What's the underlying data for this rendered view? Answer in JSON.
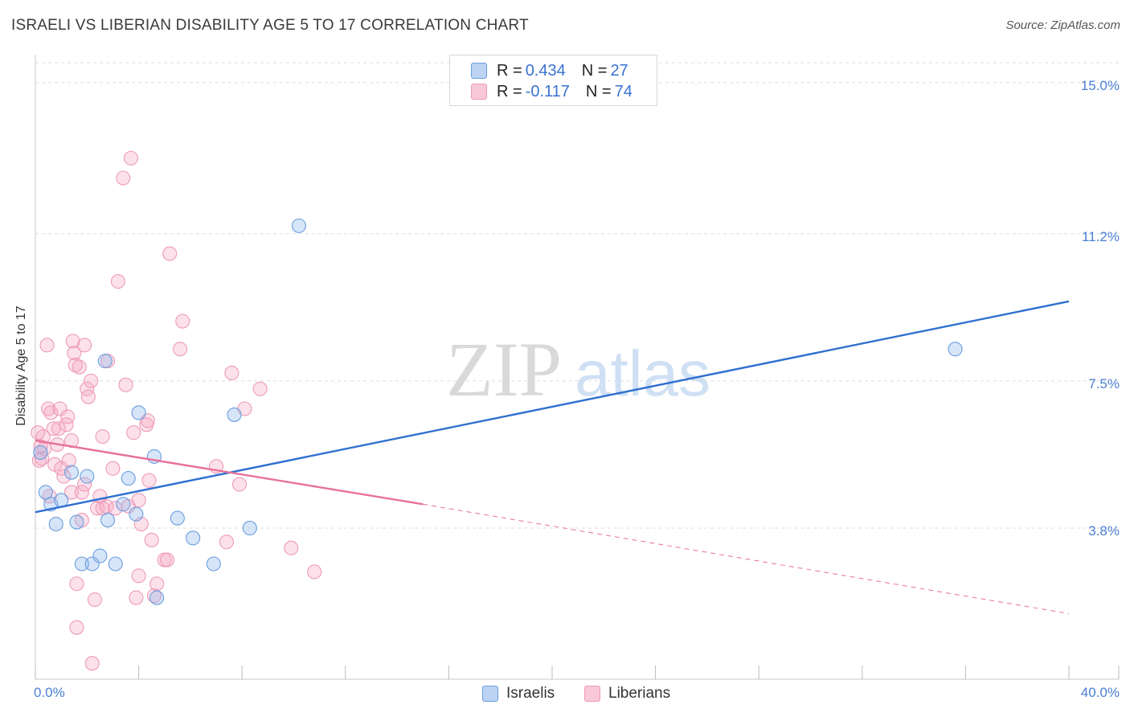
{
  "title": "ISRAELI VS LIBERIAN DISABILITY AGE 5 TO 17 CORRELATION CHART",
  "source": "Source: ZipAtlas.com",
  "watermark": {
    "zip": "ZIP",
    "atlas": "atlas"
  },
  "legend": {
    "israelis": {
      "r_label": "R = ",
      "r_value": "0.434",
      "n_label": "N = ",
      "n_value": "27"
    },
    "liberians": {
      "r_label": "R = ",
      "r_value": "-0.117",
      "n_label": "N = ",
      "n_value": "74"
    }
  },
  "bottom_legend": {
    "israelis": "Israelis",
    "liberians": "Liberians"
  },
  "colors": {
    "israeli_fill": "rgba(140,180,235,0.35)",
    "israeli_stroke": "#6a9ee0",
    "israeli_line": "#2f6fd0",
    "liberian_fill": "rgba(245,170,195,0.35)",
    "liberian_stroke": "#ee9ab8",
    "liberian_line": "#e8709a",
    "tick_text": "#4a7fd4",
    "grid": "#dddddd"
  },
  "chart_data": {
    "type": "scatter",
    "title": "ISRAELI VS LIBERIAN DISABILITY AGE 5 TO 17 CORRELATION CHART",
    "xlabel": "",
    "ylabel": "Disability Age 5 to 17",
    "xlim": [
      0,
      40
    ],
    "ylim": [
      0,
      15.5
    ],
    "x_tick_labels": [
      {
        "value": 0,
        "label": "0.0%"
      },
      {
        "value": 40,
        "label": "40.0%"
      }
    ],
    "x_ticks": [
      0,
      4,
      8,
      12,
      16,
      20,
      24,
      28,
      32,
      36,
      40
    ],
    "y_ticks": [
      {
        "value": 3.8,
        "label": "3.8%"
      },
      {
        "value": 7.5,
        "label": "7.5%"
      },
      {
        "value": 11.2,
        "label": "11.2%"
      },
      {
        "value": 15.0,
        "label": "15.0%"
      }
    ],
    "grid": true,
    "series": [
      {
        "name": "Israelis",
        "points": [
          [
            0.2,
            5.7
          ],
          [
            0.4,
            4.7
          ],
          [
            0.6,
            4.4
          ],
          [
            0.8,
            3.9
          ],
          [
            1.0,
            4.5
          ],
          [
            1.4,
            5.2
          ],
          [
            1.6,
            3.95
          ],
          [
            2.0,
            5.1
          ],
          [
            1.8,
            2.9
          ],
          [
            2.2,
            2.9
          ],
          [
            2.5,
            3.1
          ],
          [
            2.8,
            4.0
          ],
          [
            2.7,
            8.0
          ],
          [
            3.1,
            2.9
          ],
          [
            3.4,
            4.4
          ],
          [
            3.6,
            5.05
          ],
          [
            3.9,
            4.15
          ],
          [
            4.0,
            6.7
          ],
          [
            4.6,
            5.6
          ],
          [
            4.7,
            2.05
          ],
          [
            5.5,
            4.05
          ],
          [
            6.1,
            3.55
          ],
          [
            6.9,
            2.9
          ],
          [
            7.7,
            6.65
          ],
          [
            8.3,
            3.8
          ],
          [
            10.2,
            11.4
          ],
          [
            35.6,
            8.3
          ]
        ],
        "trend": {
          "x": [
            0,
            40
          ],
          "y": [
            4.2,
            9.5
          ]
        }
      },
      {
        "name": "Liberians",
        "points": [
          [
            0.15,
            5.5
          ],
          [
            0.3,
            6.1
          ],
          [
            0.35,
            5.8
          ],
          [
            0.45,
            8.4
          ],
          [
            0.5,
            6.8
          ],
          [
            0.6,
            6.7
          ],
          [
            0.7,
            6.3
          ],
          [
            0.75,
            5.4
          ],
          [
            0.85,
            5.9
          ],
          [
            0.9,
            6.3
          ],
          [
            0.95,
            6.8
          ],
          [
            1.0,
            5.3
          ],
          [
            1.1,
            5.1
          ],
          [
            1.2,
            6.4
          ],
          [
            1.25,
            6.6
          ],
          [
            1.3,
            5.5
          ],
          [
            1.4,
            4.7
          ],
          [
            1.4,
            6.0
          ],
          [
            1.45,
            8.5
          ],
          [
            1.5,
            8.2
          ],
          [
            1.55,
            7.9
          ],
          [
            1.6,
            2.4
          ],
          [
            1.6,
            1.3
          ],
          [
            1.7,
            7.85
          ],
          [
            1.8,
            4.7
          ],
          [
            1.8,
            4.0
          ],
          [
            1.9,
            8.4
          ],
          [
            1.9,
            4.9
          ],
          [
            2.0,
            7.3
          ],
          [
            2.05,
            7.1
          ],
          [
            2.15,
            7.5
          ],
          [
            2.2,
            0.4
          ],
          [
            2.3,
            2.0
          ],
          [
            2.4,
            4.3
          ],
          [
            2.5,
            4.6
          ],
          [
            2.6,
            4.3
          ],
          [
            2.6,
            6.1
          ],
          [
            2.75,
            4.35
          ],
          [
            2.8,
            8.0
          ],
          [
            3.0,
            5.3
          ],
          [
            3.1,
            4.3
          ],
          [
            3.2,
            10.0
          ],
          [
            3.4,
            12.6
          ],
          [
            3.5,
            7.4
          ],
          [
            3.6,
            4.35
          ],
          [
            3.7,
            13.1
          ],
          [
            3.8,
            6.2
          ],
          [
            3.9,
            2.05
          ],
          [
            4.0,
            4.5
          ],
          [
            4.0,
            2.6
          ],
          [
            4.1,
            3.9
          ],
          [
            4.3,
            6.4
          ],
          [
            4.35,
            6.5
          ],
          [
            4.4,
            5.0
          ],
          [
            4.5,
            3.5
          ],
          [
            4.6,
            2.1
          ],
          [
            4.7,
            2.4
          ],
          [
            5.0,
            3.0
          ],
          [
            5.1,
            3.0
          ],
          [
            5.2,
            10.7
          ],
          [
            5.6,
            8.3
          ],
          [
            5.7,
            9.0
          ],
          [
            7.0,
            5.35
          ],
          [
            7.4,
            3.45
          ],
          [
            7.6,
            7.7
          ],
          [
            7.9,
            4.9
          ],
          [
            8.1,
            6.8
          ],
          [
            8.7,
            7.3
          ],
          [
            9.9,
            3.3
          ],
          [
            10.8,
            2.7
          ],
          [
            0.1,
            6.2
          ],
          [
            0.25,
            5.55
          ],
          [
            0.55,
            4.6
          ],
          [
            0.2,
            5.85
          ]
        ],
        "trend": {
          "x": [
            0,
            15
          ],
          "y": [
            6.0,
            4.4
          ]
        },
        "trend_dashed": {
          "x": [
            15,
            40
          ],
          "y": [
            4.4,
            1.65
          ]
        }
      }
    ]
  }
}
